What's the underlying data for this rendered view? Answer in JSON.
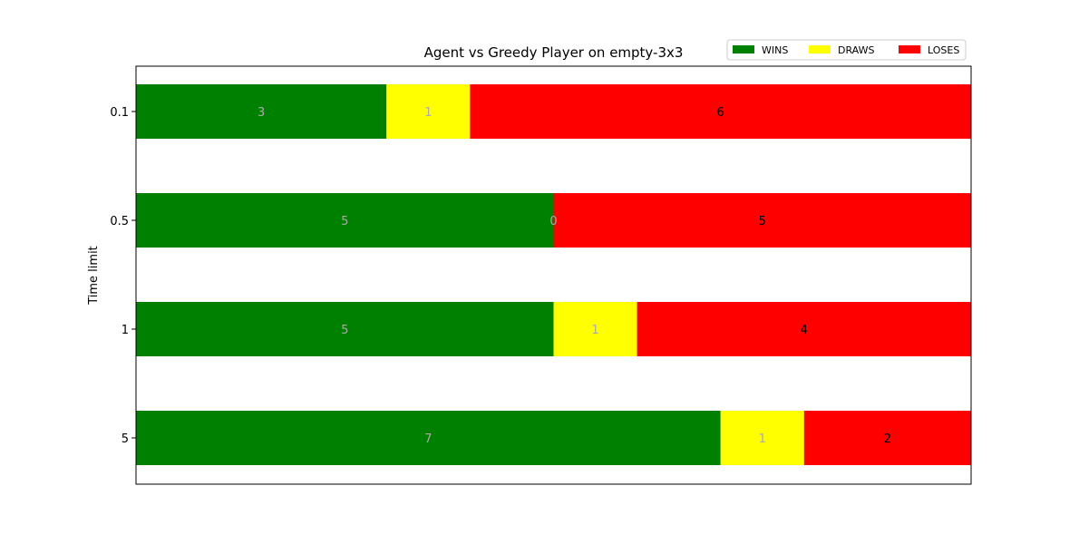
{
  "chart_data": {
    "type": "bar",
    "orientation": "horizontal",
    "stacked": true,
    "title": "Agent vs Greedy Player on empty-3x3",
    "xlabel": "",
    "ylabel": "Time limit",
    "categories": [
      "0.1",
      "0.5",
      "1",
      "5"
    ],
    "series": [
      {
        "name": "WINS",
        "color": "#008000",
        "label_color": "#aaaaaa",
        "values": [
          3,
          5,
          5,
          7
        ]
      },
      {
        "name": "DRAWS",
        "color": "#ffff00",
        "label_color": "#aaaaaa",
        "values": [
          1,
          0,
          1,
          1
        ]
      },
      {
        "name": "LOSES",
        "color": "#ff0000",
        "label_color": "#000000",
        "values": [
          6,
          5,
          4,
          2
        ]
      }
    ],
    "xlim": [
      0,
      10
    ],
    "x_ticks_visible": false,
    "grid": false,
    "legend_position": "top-right"
  }
}
